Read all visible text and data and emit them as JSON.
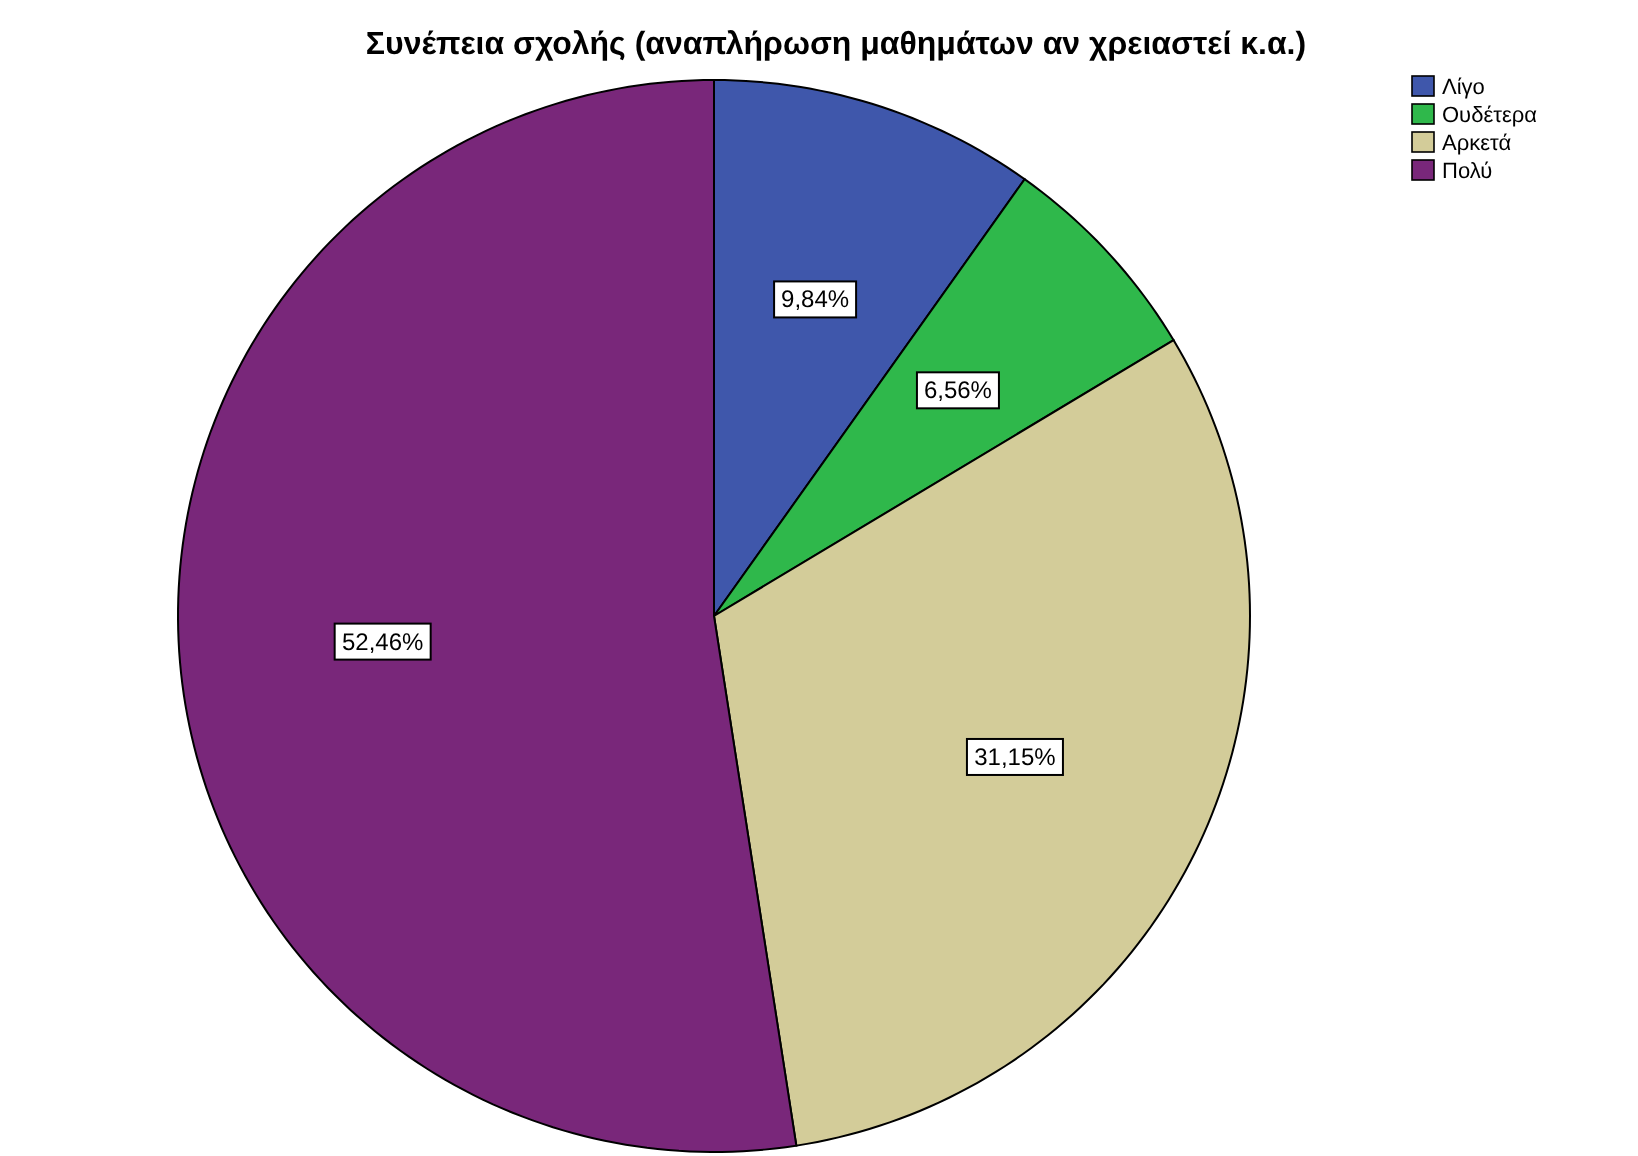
{
  "chart_data": {
    "type": "pie",
    "title": "Συνέπεια σχολής (αναπλήρωση μαθημάτων αν χρειαστεί κ.α.)",
    "categories": [
      "Λίγο",
      "Ουδέτερα",
      "Αρκετά",
      "Πολύ"
    ],
    "values": [
      9.84,
      6.56,
      31.15,
      52.46
    ],
    "colors": [
      "#3f57ab",
      "#2fb84b",
      "#d3cc99",
      "#79277a"
    ],
    "value_labels": [
      "9,84%",
      "6,56%",
      "31,15%",
      "52,46%"
    ],
    "legend": "top right"
  }
}
